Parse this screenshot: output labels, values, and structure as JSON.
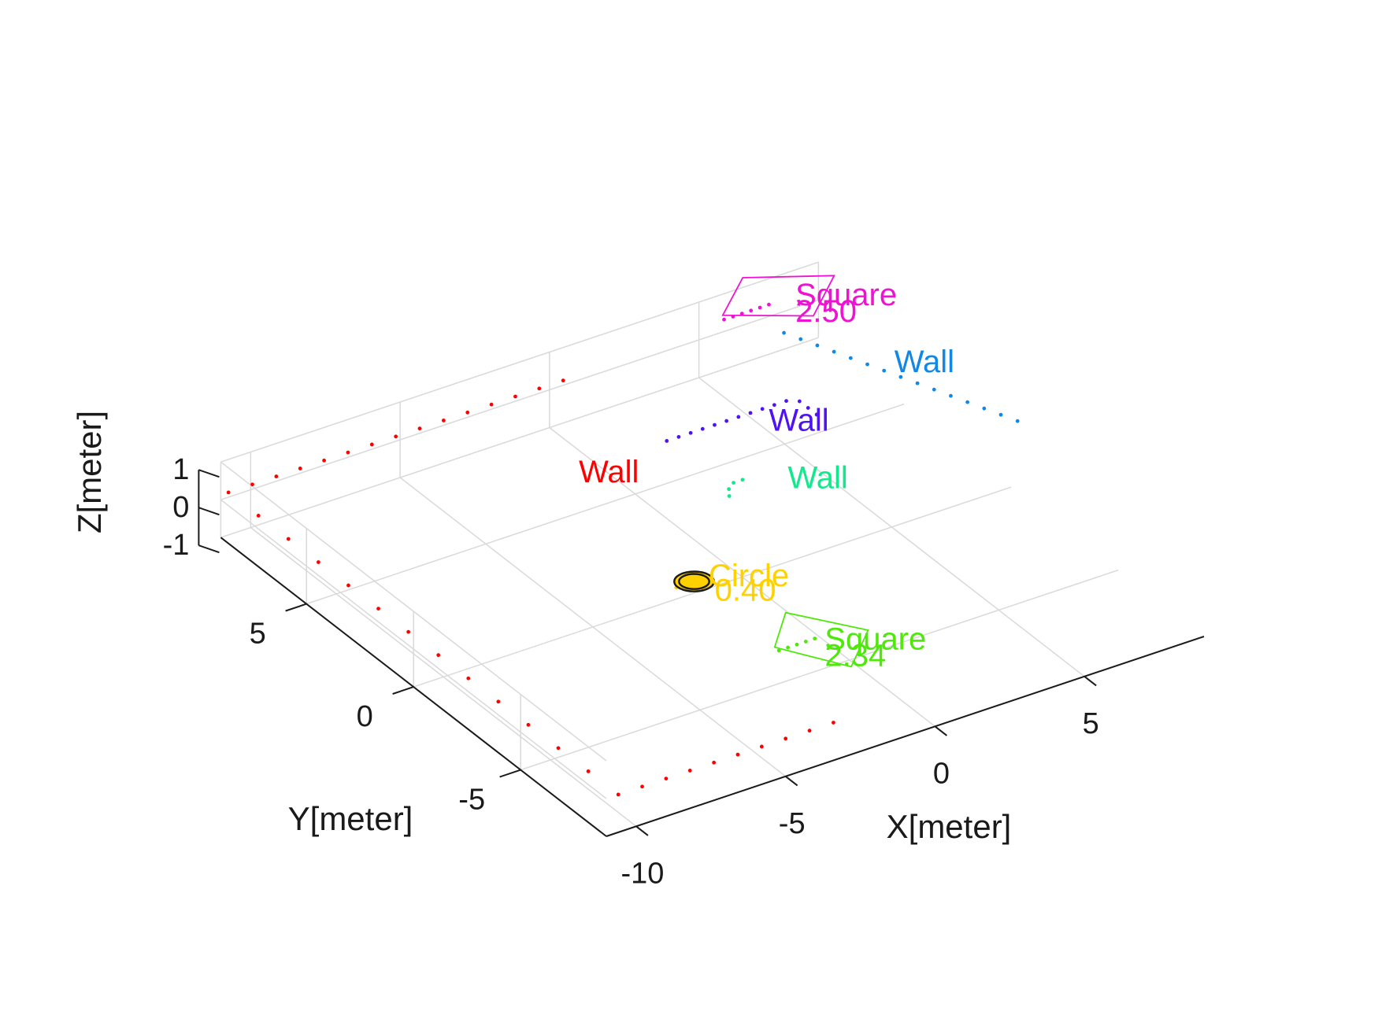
{
  "chart_data": {
    "type": "scatter",
    "view": "3d",
    "xlabel": "X[meter]",
    "ylabel": "Y[meter]",
    "zlabel": "Z[meter]",
    "xlim": [
      -11,
      9
    ],
    "ylim": [
      -9,
      9
    ],
    "zlim": [
      -1,
      1
    ],
    "xticks": [
      {
        "v": -10,
        "label": "-10"
      },
      {
        "v": -5,
        "label": "-5"
      },
      {
        "v": 0,
        "label": "0"
      },
      {
        "v": 5,
        "label": "5"
      }
    ],
    "yticks": [
      {
        "v": -5,
        "label": "-5"
      },
      {
        "v": 0,
        "label": "0"
      },
      {
        "v": 5,
        "label": "5"
      }
    ],
    "zticks": [
      {
        "v": -1,
        "label": "-1"
      },
      {
        "v": 0,
        "label": "0"
      },
      {
        "v": 1,
        "label": "1"
      }
    ],
    "grid": true,
    "annotations": [
      {
        "text": "Wall",
        "x": -2.1,
        "y": 4.7,
        "z": 0,
        "color": "#ff0000"
      },
      {
        "text": "Wall",
        "x": 3.9,
        "y": 4.2,
        "z": 0,
        "color": "#4f12f0"
      },
      {
        "text": "Wall",
        "x": 2.6,
        "y": 1.5,
        "z": 0,
        "color": "#12e88c"
      },
      {
        "text": "Wall",
        "x": 8.6,
        "y": 4.9,
        "z": 0,
        "color": "#1188e6"
      },
      {
        "text": "Square",
        "x": 8.3,
        "y": 9.1,
        "z": 0,
        "color": "#f012d2"
      },
      {
        "text": "2.50",
        "x": 7.8,
        "y": 8.4,
        "z": 0,
        "color": "#f012d2"
      },
      {
        "text": "Circle",
        "x": -2.2,
        "y": -1.5,
        "z": 0,
        "color": "#ffd100"
      },
      {
        "text": "0.40",
        "x": -2.5,
        "y": -2.2,
        "z": 0,
        "color": "#ffd100"
      },
      {
        "text": "Square",
        "x": -1.4,
        "y": -5.8,
        "z": 0,
        "color": "#4ee80a"
      },
      {
        "text": "2.34",
        "x": -1.9,
        "y": -6.5,
        "z": 0,
        "color": "#4ee80a"
      }
    ],
    "series": [
      {
        "color": "#ff0000",
        "points": [
          [
            -10.6,
            9.2,
            0
          ],
          [
            -10.6,
            7.8,
            0
          ],
          [
            -10.6,
            6.4,
            0
          ],
          [
            -10.6,
            5.0,
            0
          ],
          [
            -10.6,
            3.6,
            0
          ],
          [
            -10.6,
            2.2,
            0
          ],
          [
            -10.6,
            0.8,
            0
          ],
          [
            -10.6,
            -0.6,
            0
          ],
          [
            -10.6,
            -2.0,
            0
          ],
          [
            -10.6,
            -3.4,
            0
          ],
          [
            -10.6,
            -4.8,
            0
          ],
          [
            -10.6,
            -6.2,
            0
          ],
          [
            -10.6,
            -7.6,
            0
          ],
          [
            -10.6,
            -9.0,
            0
          ],
          [
            -9.8,
            9.2,
            0
          ],
          [
            -9.0,
            9.2,
            0
          ],
          [
            -8.2,
            9.2,
            0
          ],
          [
            -7.4,
            9.2,
            0
          ],
          [
            -6.6,
            9.2,
            0
          ],
          [
            -5.8,
            9.2,
            0
          ],
          [
            -5.0,
            9.2,
            0
          ],
          [
            -4.2,
            9.2,
            0
          ],
          [
            -3.4,
            9.2,
            0
          ],
          [
            -2.6,
            9.2,
            0
          ],
          [
            -1.8,
            9.2,
            0
          ],
          [
            -1.0,
            9.2,
            0
          ],
          [
            -0.2,
            9.2,
            0
          ],
          [
            0.6,
            9.2,
            0
          ],
          [
            -9.8,
            -9.0,
            0
          ],
          [
            -9.0,
            -9.0,
            0
          ],
          [
            -8.2,
            -9.0,
            0
          ],
          [
            -7.4,
            -9.0,
            0
          ],
          [
            -6.6,
            -9.0,
            0
          ],
          [
            -5.8,
            -9.0,
            0
          ],
          [
            -5.0,
            -9.0,
            0
          ],
          [
            -4.2,
            -9.0,
            0
          ],
          [
            -3.4,
            -9.0,
            0
          ]
        ]
      },
      {
        "color": "#4f12f0",
        "points": [
          [
            1.2,
            5.2,
            0
          ],
          [
            1.6,
            5.2,
            0
          ],
          [
            2.0,
            5.2,
            0
          ],
          [
            2.4,
            5.2,
            0
          ],
          [
            2.8,
            5.2,
            0
          ],
          [
            3.2,
            5.2,
            0
          ],
          [
            3.6,
            5.2,
            0
          ],
          [
            4.0,
            5.2,
            0
          ],
          [
            4.4,
            5.2,
            0
          ],
          [
            4.8,
            5.2,
            0
          ],
          [
            5.2,
            5.2,
            0
          ],
          [
            5.5,
            5.0,
            0
          ],
          [
            5.5,
            4.6,
            0
          ],
          [
            5.5,
            4.2,
            0
          ]
        ]
      },
      {
        "color": "#12e88c",
        "points": [
          [
            1.0,
            2.0,
            0
          ],
          [
            1.2,
            2.3,
            0
          ],
          [
            1.5,
            2.5,
            0
          ],
          [
            1.8,
            2.5,
            0
          ]
        ]
      },
      {
        "color": "#1188e6",
        "points": [
          [
            7.2,
            8.1,
            0
          ],
          [
            7.4,
            7.6,
            0
          ],
          [
            7.6,
            7.1,
            0
          ],
          [
            7.8,
            6.6,
            0
          ],
          [
            8.0,
            6.1,
            0
          ],
          [
            8.2,
            5.6,
            0
          ],
          [
            8.4,
            5.1,
            0
          ],
          [
            8.6,
            4.6,
            0
          ],
          [
            8.8,
            4.1,
            0
          ],
          [
            9.0,
            3.6,
            0
          ],
          [
            9.2,
            3.1,
            0
          ],
          [
            9.4,
            2.6,
            0
          ],
          [
            9.6,
            2.1,
            0
          ],
          [
            9.8,
            1.6,
            0
          ],
          [
            10.0,
            1.1,
            0
          ]
        ]
      },
      {
        "color": "#f012d2",
        "points": [
          [
            6.2,
            9.5,
            0
          ],
          [
            6.5,
            9.5,
            0
          ],
          [
            6.8,
            9.5,
            0
          ],
          [
            7.1,
            9.5,
            0
          ],
          [
            7.4,
            9.5,
            0
          ],
          [
            7.7,
            9.5,
            0
          ]
        ]
      },
      {
        "color": "#ffd100",
        "points": [
          [
            -3.0,
            -1.1,
            0
          ],
          [
            -2.8,
            -1.1,
            0
          ],
          [
            -2.6,
            -1.1,
            0
          ],
          [
            -2.4,
            -1.1,
            0
          ]
        ]
      },
      {
        "color": "#4ee80a",
        "points": [
          [
            -2.5,
            -5.2,
            0
          ],
          [
            -2.2,
            -5.2,
            0
          ],
          [
            -1.9,
            -5.2,
            0
          ],
          [
            -1.6,
            -5.2,
            0
          ],
          [
            -1.3,
            -5.2,
            0
          ]
        ]
      }
    ],
    "polygons": [
      {
        "color": "#f012d2",
        "points": [
          [
            6.3,
            9.7,
            0
          ],
          [
            7.9,
            11.0,
            0
          ],
          [
            10.1,
            9.8,
            0
          ],
          [
            8.4,
            8.4,
            0
          ]
        ]
      },
      {
        "color": "#4ee80a",
        "points": [
          [
            -2.5,
            -5.0,
            0
          ],
          [
            -1.2,
            -3.7,
            0
          ],
          [
            0.2,
            -5.6,
            0
          ],
          [
            -1.3,
            -6.9,
            0
          ]
        ]
      }
    ],
    "rings": [
      {
        "cx": -2.4,
        "cy": -1.1,
        "z": 0,
        "r": 0.42,
        "color": "#1a1a1a",
        "fill": "#ffd100"
      },
      {
        "cx": -2.4,
        "cy": -1.1,
        "z": 0,
        "r": 0.32,
        "color": "#1a1a1a",
        "fill": "none"
      }
    ]
  }
}
